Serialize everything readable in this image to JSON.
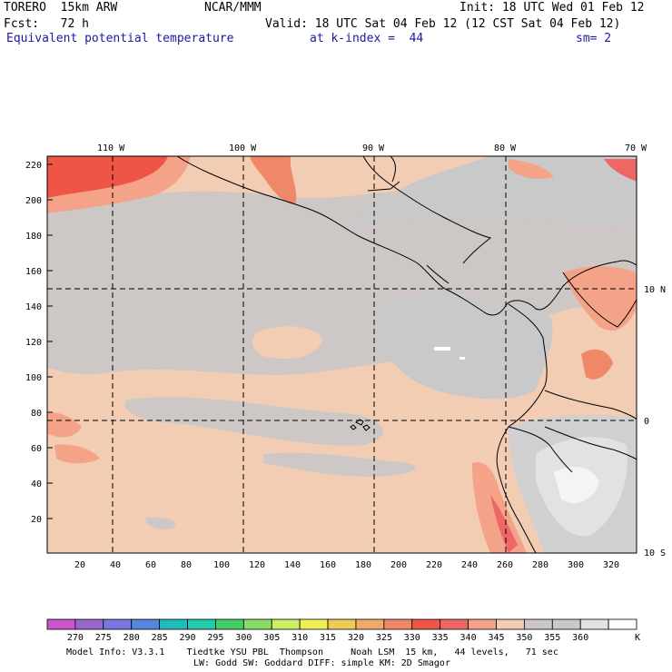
{
  "header": {
    "model": "TORERO",
    "resolution": "15km ARW",
    "org": "NCAR/MMM",
    "init": "Init: 18 UTC Wed 01 Feb 12",
    "fcst_label": "Fcst:",
    "fcst_value": "72 h",
    "valid": "Valid: 18 UTC Sat 04 Feb 12 (12 CST Sat 04 Feb 12)",
    "field": "Equivalent potential temperature",
    "level": "at k-index =  44",
    "smoothing": "sm= 2"
  },
  "map": {
    "top_lon_labels": [
      "110 W",
      "100 W",
      "90 W",
      "80 W",
      "70 W"
    ],
    "right_lat_labels": [
      "10 N",
      "0",
      "10 S"
    ],
    "left_grid_labels": [
      "220",
      "200",
      "180",
      "160",
      "140",
      "120",
      "100",
      "80",
      "60",
      "40",
      "20"
    ],
    "bottom_grid_labels": [
      "20",
      "40",
      "60",
      "80",
      "100",
      "120",
      "140",
      "160",
      "180",
      "200",
      "220",
      "240",
      "260",
      "280",
      "300",
      "320"
    ]
  },
  "colorbar": {
    "levels": [
      "270",
      "275",
      "280",
      "285",
      "290",
      "295",
      "300",
      "305",
      "310",
      "315",
      "320",
      "325",
      "330",
      "335",
      "340",
      "345",
      "350",
      "355",
      "360"
    ],
    "unit": "K",
    "colors": [
      "#cc55cc",
      "#9966cc",
      "#7777dd",
      "#5588dd",
      "#22bbbb",
      "#22ccaa",
      "#44cc66",
      "#88dd66",
      "#ccee66",
      "#eeee55",
      "#eecc55",
      "#eeaa66",
      "#ee8866",
      "#ee5544",
      "#ee6666",
      "#f4a288",
      "#f2cdb4",
      "#cdc8c5",
      "#c9c9c9",
      "#e2e2e2",
      "#ffffff"
    ]
  },
  "footer": {
    "line1": "Model Info: V3.3.1    Tiedtke YSU PBL  Thompson     Noah LSM  15 km,   44 levels,   71 sec",
    "line2": "LW: Godd SW: Goddard DIFF: simple KM: 2D Smagor"
  }
}
